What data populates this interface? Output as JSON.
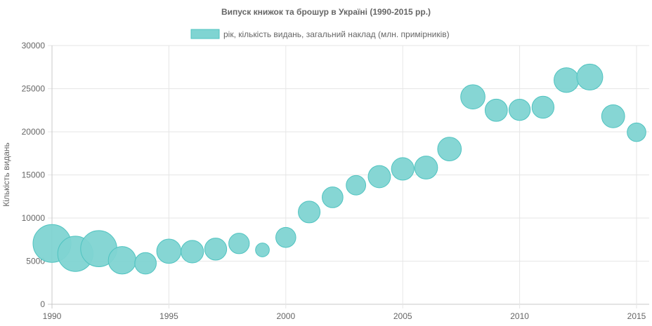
{
  "chart_data": {
    "type": "scatter",
    "subtype": "bubble",
    "title": "Випуск книжок та брошур в Україні (1990-2015 рр.)",
    "legend_position": "top",
    "xlabel": "",
    "ylabel": "Кількість видань",
    "xlim": [
      1990,
      2015
    ],
    "ylim": [
      0,
      30000
    ],
    "x_ticks": [
      "1990",
      "1995",
      "2000",
      "2005",
      "2010",
      "2015"
    ],
    "y_ticks": [
      "0",
      "5000",
      "10000",
      "15000",
      "20000",
      "25000",
      "30000"
    ],
    "grid": true,
    "colors": {
      "fill": "#7fd4d2",
      "stroke": "#4fc3c0"
    },
    "series": [
      {
        "name": "рік, кількість видань, загальний наклад (млн. примірників)",
        "points": [
          {
            "x": 1990,
            "y": 7050,
            "r": 136
          },
          {
            "x": 1991,
            "y": 5850,
            "r": 118
          },
          {
            "x": 1992,
            "y": 6450,
            "r": 124
          },
          {
            "x": 1993,
            "y": 5100,
            "r": 72
          },
          {
            "x": 1994,
            "y": 4750,
            "r": 44
          },
          {
            "x": 1995,
            "y": 6150,
            "r": 56
          },
          {
            "x": 1996,
            "y": 6100,
            "r": 48
          },
          {
            "x": 1997,
            "y": 6400,
            "r": 46
          },
          {
            "x": 1998,
            "y": 7050,
            "r": 40
          },
          {
            "x": 1999,
            "y": 6300,
            "r": 18
          },
          {
            "x": 2000,
            "y": 7750,
            "r": 38
          },
          {
            "x": 2001,
            "y": 10700,
            "r": 45
          },
          {
            "x": 2002,
            "y": 12400,
            "r": 41
          },
          {
            "x": 2003,
            "y": 13800,
            "r": 36
          },
          {
            "x": 2004,
            "y": 14800,
            "r": 47
          },
          {
            "x": 2005,
            "y": 15700,
            "r": 48
          },
          {
            "x": 2006,
            "y": 15850,
            "r": 50
          },
          {
            "x": 2007,
            "y": 18000,
            "r": 53
          },
          {
            "x": 2008,
            "y": 24050,
            "r": 56
          },
          {
            "x": 2009,
            "y": 22500,
            "r": 47
          },
          {
            "x": 2010,
            "y": 22550,
            "r": 43
          },
          {
            "x": 2011,
            "y": 22850,
            "r": 46
          },
          {
            "x": 2012,
            "y": 26000,
            "r": 58
          },
          {
            "x": 2013,
            "y": 26350,
            "r": 64
          },
          {
            "x": 2014,
            "y": 21800,
            "r": 50
          },
          {
            "x": 2015,
            "y": 19950,
            "r": 33
          }
        ]
      }
    ]
  }
}
